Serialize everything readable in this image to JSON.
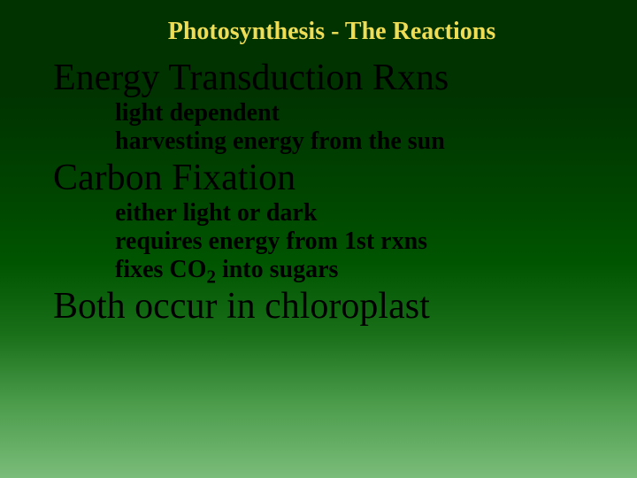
{
  "title": "Photosynthesis - The Reactions",
  "section1": {
    "heading": "Energy Transduction Rxns",
    "sub1": "light dependent",
    "sub2": "harvesting energy from the sun"
  },
  "section2": {
    "heading": "Carbon Fixation",
    "sub1": "either light or dark",
    "sub2": "requires energy from 1st rxns",
    "sub3_pre": "fixes CO",
    "sub3_sub": "2",
    "sub3_post": " into sugars"
  },
  "section3": {
    "heading": "Both occur in chloroplast"
  },
  "colors": {
    "title_color": "#eedd55",
    "body_color": "#000000",
    "bg_top": "#003300",
    "bg_bottom": "#7abc7a"
  },
  "fonts": {
    "title_fontsize": 28,
    "heading_fontsize": 42,
    "sub_fontsize": 28,
    "family": "Times New Roman"
  }
}
